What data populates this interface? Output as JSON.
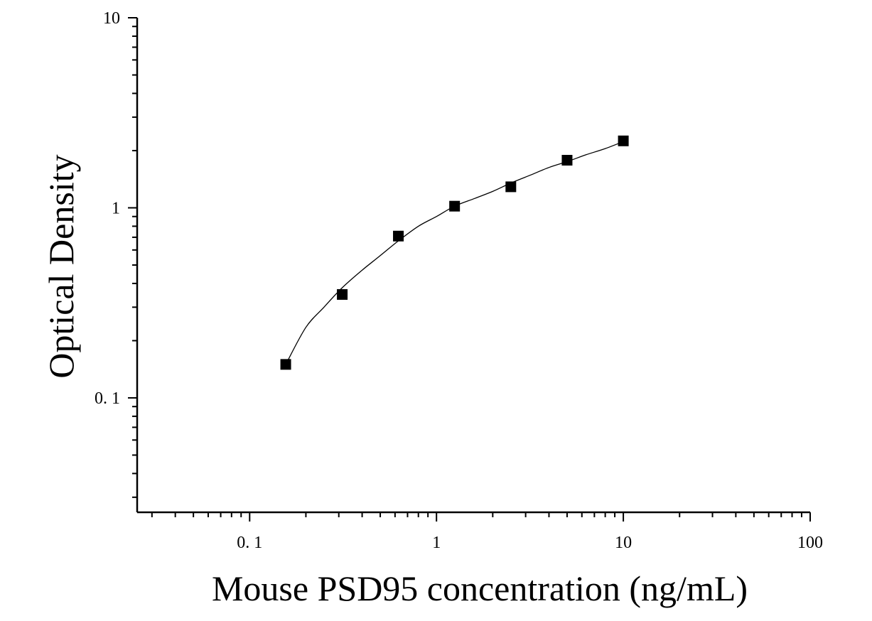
{
  "chart_data": {
    "type": "scatter",
    "title": "",
    "xlabel": "Mouse PSD95 concentration (ng/mL)",
    "ylabel": "Optical Density",
    "x_scale": "log",
    "y_scale": "log",
    "xlim": [
      0.025,
      100
    ],
    "ylim": [
      0.025,
      10
    ],
    "x_ticks": [
      {
        "value": 0.1,
        "label": "0. 1"
      },
      {
        "value": 1,
        "label": "1"
      },
      {
        "value": 10,
        "label": "10"
      },
      {
        "value": 100,
        "label": "100"
      }
    ],
    "y_ticks": [
      {
        "value": 0.1,
        "label": "0. 1"
      },
      {
        "value": 1,
        "label": "1"
      },
      {
        "value": 10,
        "label": "10"
      }
    ],
    "grid": false,
    "legend": "none",
    "series": [
      {
        "marker": "square",
        "color": "#000000",
        "points": [
          {
            "x": 0.156,
            "y": 0.15
          },
          {
            "x": 0.313,
            "y": 0.35
          },
          {
            "x": 0.625,
            "y": 0.71
          },
          {
            "x": 1.25,
            "y": 1.02
          },
          {
            "x": 2.5,
            "y": 1.29
          },
          {
            "x": 5,
            "y": 1.78
          },
          {
            "x": 10,
            "y": 2.25
          }
        ]
      }
    ],
    "fit_curve": {
      "color": "#000000",
      "points": [
        {
          "x": 0.156,
          "y": 0.15
        },
        {
          "x": 0.2,
          "y": 0.235
        },
        {
          "x": 0.25,
          "y": 0.3
        },
        {
          "x": 0.313,
          "y": 0.38
        },
        {
          "x": 0.4,
          "y": 0.47
        },
        {
          "x": 0.5,
          "y": 0.56
        },
        {
          "x": 0.625,
          "y": 0.67
        },
        {
          "x": 0.8,
          "y": 0.8
        },
        {
          "x": 1.0,
          "y": 0.9
        },
        {
          "x": 1.25,
          "y": 1.02
        },
        {
          "x": 1.6,
          "y": 1.12
        },
        {
          "x": 2.0,
          "y": 1.22
        },
        {
          "x": 2.5,
          "y": 1.35
        },
        {
          "x": 3.2,
          "y": 1.49
        },
        {
          "x": 4.0,
          "y": 1.63
        },
        {
          "x": 5.0,
          "y": 1.75
        },
        {
          "x": 6.3,
          "y": 1.9
        },
        {
          "x": 8.0,
          "y": 2.05
        },
        {
          "x": 10.0,
          "y": 2.23
        }
      ]
    }
  }
}
